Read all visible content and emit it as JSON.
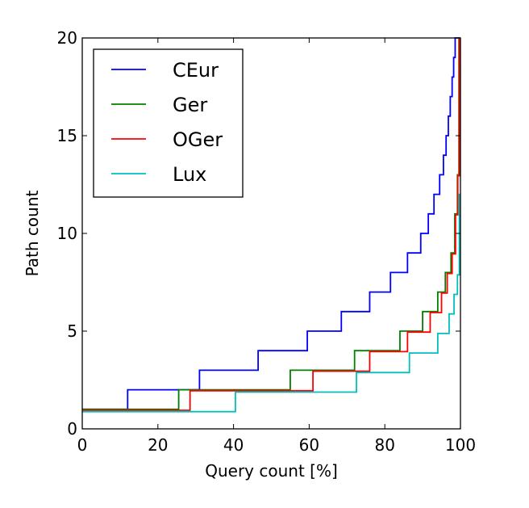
{
  "chart_data": {
    "type": "line",
    "step": true,
    "title": "",
    "xlabel": "Query count [%]",
    "ylabel": "Path count",
    "xlim": [
      0,
      100
    ],
    "ylim": [
      0,
      20
    ],
    "xticks": [
      "0",
      "20",
      "40",
      "60",
      "80",
      "100"
    ],
    "yticks": [
      "0",
      "5",
      "10",
      "15",
      "20"
    ],
    "grid": false,
    "legend_position": "top-left",
    "series": [
      {
        "name": "CEur",
        "color": "#0000ff",
        "x": [
          0,
          12,
          31,
          46.5,
          59.5,
          68.5,
          76,
          81.5,
          86,
          89.5,
          91.5,
          93,
          94.5,
          95.5,
          96.2,
          96.8,
          97.3,
          97.8,
          98.2,
          98.6,
          99,
          99.2,
          99.4,
          99.6,
          99.8,
          100
        ],
        "y": [
          1,
          2,
          3,
          4,
          5,
          6,
          7,
          8,
          9,
          10,
          11,
          12,
          13,
          14,
          15,
          16,
          17,
          18,
          19,
          20,
          20,
          20,
          20,
          20,
          20,
          20
        ]
      },
      {
        "name": "Ger",
        "color": "#008000",
        "x": [
          0,
          25.5,
          55,
          72,
          84,
          90,
          94,
          96,
          97.5,
          98.5,
          99.2,
          99.6,
          100
        ],
        "y": [
          1,
          2,
          3,
          4,
          5,
          6,
          7,
          8,
          9,
          11,
          13,
          20,
          20
        ]
      },
      {
        "name": "OGer",
        "color": "#ff0000",
        "x": [
          0,
          28.5,
          61,
          76,
          86,
          92,
          95,
          96.5,
          97.8,
          98.7,
          99.3,
          99.7,
          100
        ],
        "y": [
          0.95,
          1.95,
          2.95,
          3.95,
          4.95,
          5.95,
          6.95,
          7.95,
          8.95,
          10.95,
          12.95,
          20,
          20
        ]
      },
      {
        "name": "Lux",
        "color": "#00bfbf",
        "x": [
          0,
          40.5,
          72.5,
          86.5,
          94,
          97,
          98.3,
          99.2,
          99.7,
          100
        ],
        "y": [
          0.88,
          1.88,
          2.88,
          3.88,
          4.88,
          5.88,
          6.88,
          7.88,
          12,
          12
        ]
      }
    ]
  }
}
